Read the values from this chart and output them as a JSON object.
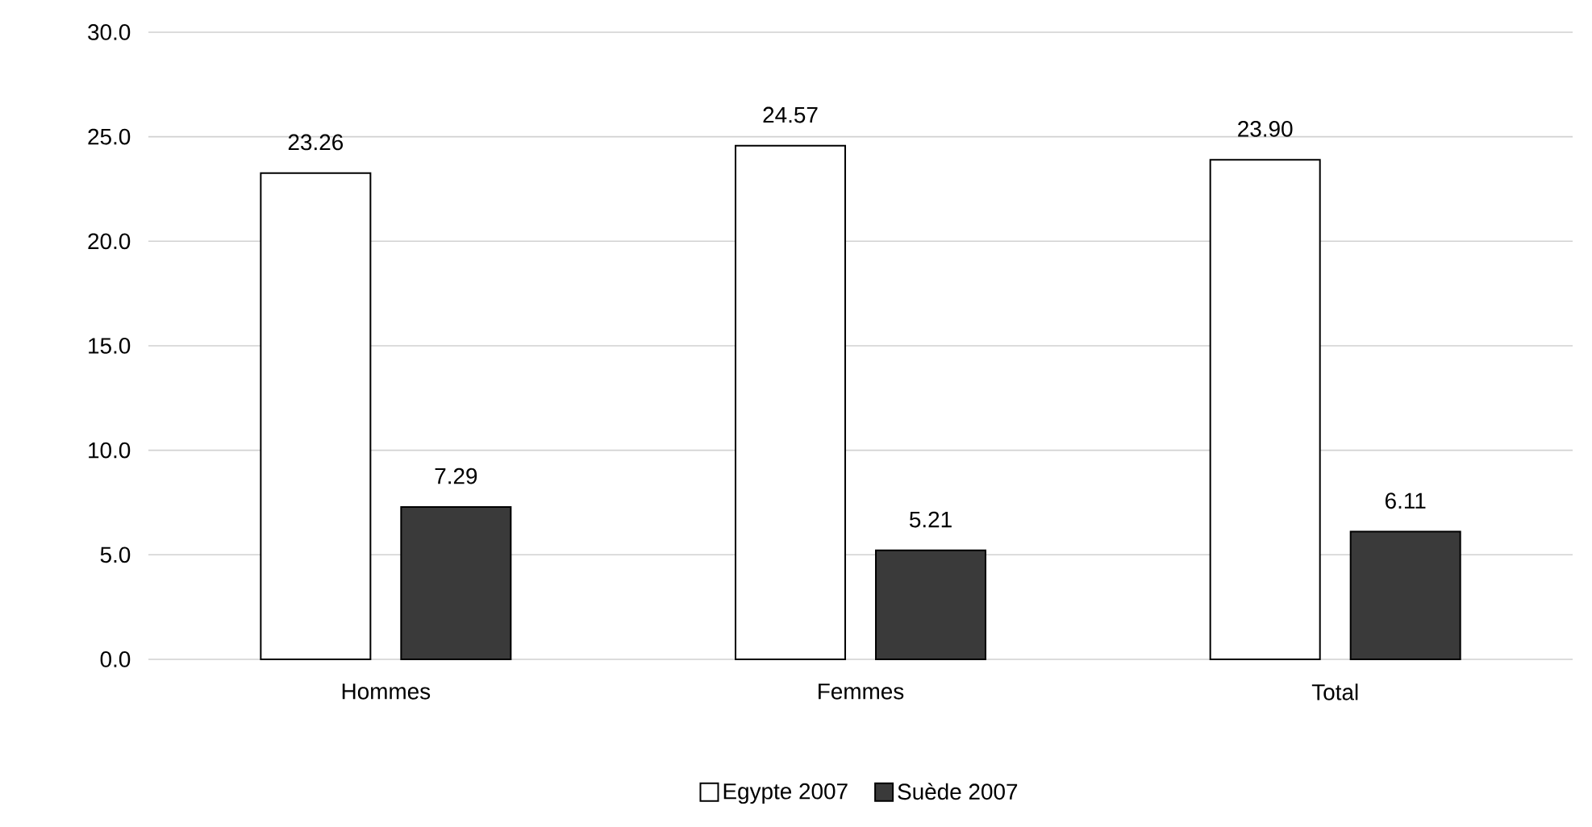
{
  "chart_data": {
    "type": "bar",
    "categories": [
      "Hommes",
      "Femmes",
      "Total"
    ],
    "series": [
      {
        "name": "Egypte 2007",
        "color": "#ffffff",
        "values": [
          23.26,
          24.57,
          23.9
        ],
        "value_labels": [
          "23.26",
          "24.57",
          "23.90"
        ]
      },
      {
        "name": "Suède 2007",
        "color": "#3a3a3a",
        "values": [
          7.29,
          5.21,
          6.11
        ],
        "value_labels": [
          "7.29",
          "5.21",
          "6.11"
        ]
      }
    ],
    "ylim": [
      0,
      30
    ],
    "yticks": [
      {
        "value": 0,
        "label": "0.0"
      },
      {
        "value": 5,
        "label": "5.0"
      },
      {
        "value": 10,
        "label": "10.0"
      },
      {
        "value": 15,
        "label": "15.0"
      },
      {
        "value": 20,
        "label": "20.0"
      },
      {
        "value": 25,
        "label": "25.0"
      },
      {
        "value": 30,
        "label": "30.0"
      }
    ],
    "grid": "y",
    "legend": "bottom"
  }
}
